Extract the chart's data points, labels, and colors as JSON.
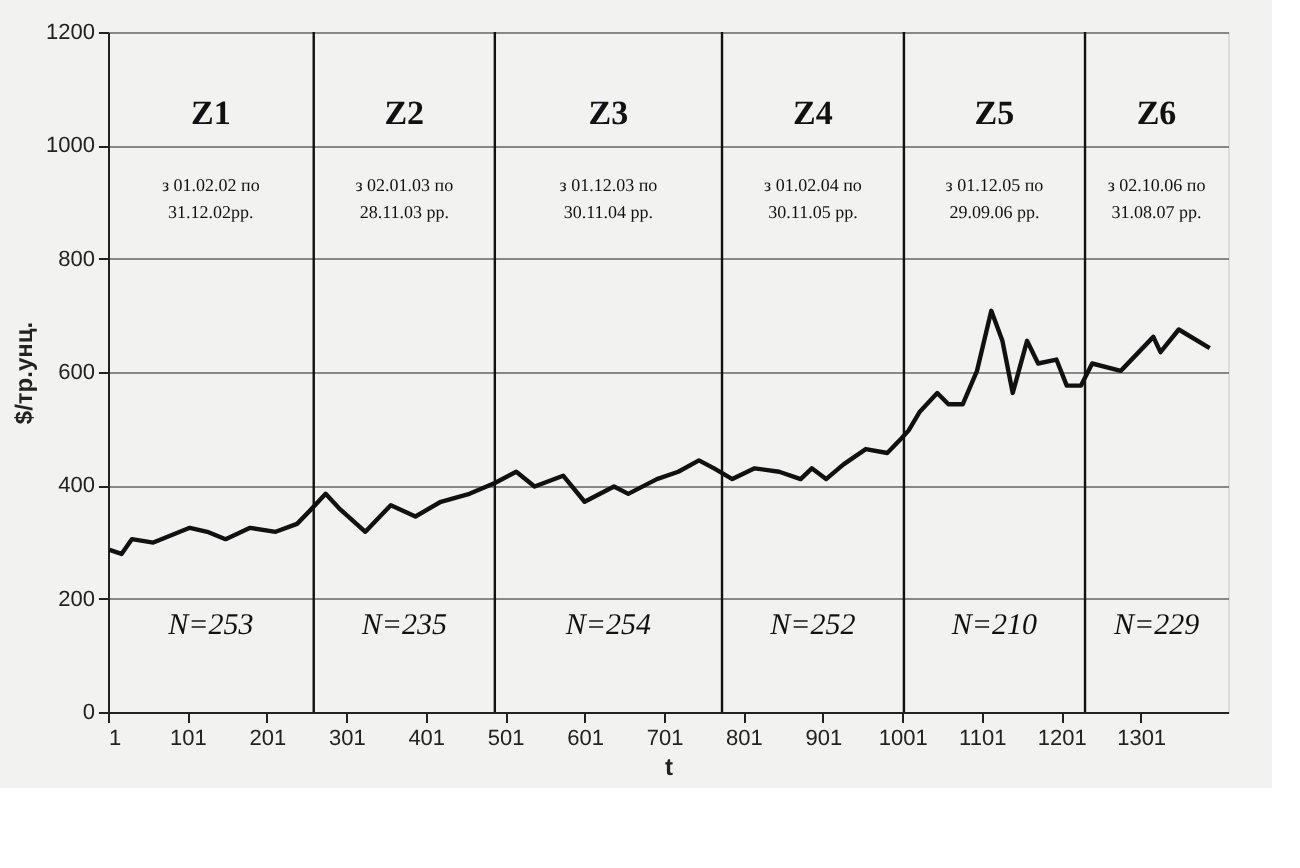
{
  "chart_data": {
    "type": "line",
    "xlabel": "t",
    "ylabel": "$/тр.унц.",
    "x": [
      3,
      18,
      31,
      58,
      104,
      126,
      149,
      180,
      212,
      239,
      257,
      275,
      293,
      325,
      357,
      388,
      420,
      456,
      488,
      515,
      538,
      574,
      601,
      638,
      656,
      692,
      719,
      745,
      764,
      787,
      815,
      846,
      873,
      887,
      905,
      927,
      955,
      982,
      1000,
      1009,
      1023,
      1045,
      1059,
      1077,
      1095,
      1113,
      1127,
      1140,
      1158,
      1172,
      1195,
      1208,
      1226,
      1240,
      1276,
      1317,
      1326,
      1349,
      1388
    ],
    "series": [
      {
        "color": "#111111",
        "values": [
          286,
          279,
          305,
          299,
          325,
          318,
          305,
          325,
          318,
          332,
          358,
          385,
          358,
          318,
          365,
          345,
          371,
          385,
          404,
          424,
          398,
          417,
          371,
          398,
          385,
          411,
          424,
          444,
          430,
          411,
          430,
          424,
          411,
          430,
          411,
          437,
          464,
          457,
          483,
          497,
          530,
          563,
          543,
          543,
          602,
          708,
          655,
          563,
          655,
          615,
          622,
          576,
          576,
          615,
          602,
          662,
          635,
          675,
          642
        ]
      }
    ],
    "xlim": [
      1,
      1411
    ],
    "xticks": [
      1,
      101,
      201,
      301,
      401,
      501,
      601,
      701,
      801,
      901,
      1001,
      1101,
      1201,
      1301
    ],
    "ylim": [
      0,
      1200
    ],
    "yticks": [
      0,
      200,
      400,
      600,
      800,
      1000,
      1200
    ],
    "grid": "y",
    "marker": "none",
    "line_style": "solid",
    "ref_lines": [
      {
        "axis": "x",
        "value": 260
      },
      {
        "axis": "x",
        "value": 488
      },
      {
        "axis": "x",
        "value": 774
      },
      {
        "axis": "x",
        "value": 1003
      },
      {
        "axis": "x",
        "value": 1231
      }
    ],
    "annotations": [
      "Z1",
      "з 01.02.02 по",
      "31.12.02рр.",
      "N=253",
      "Z2",
      "з 02.01.03 по",
      "28.11.03 рр.",
      "N=235",
      "Z3",
      "з 01.12.03 по",
      "30.11.04 рр.",
      "N=254",
      "Z4",
      "з 01.02.04 по",
      "30.11.05 рр.",
      "N=252",
      "Z5",
      "з 01.12.05 по",
      "29.09.06 рр.",
      "N=210",
      "Z6",
      "з 02.10.06 по",
      "31.08.07 рр.",
      "N=229"
    ]
  }
}
